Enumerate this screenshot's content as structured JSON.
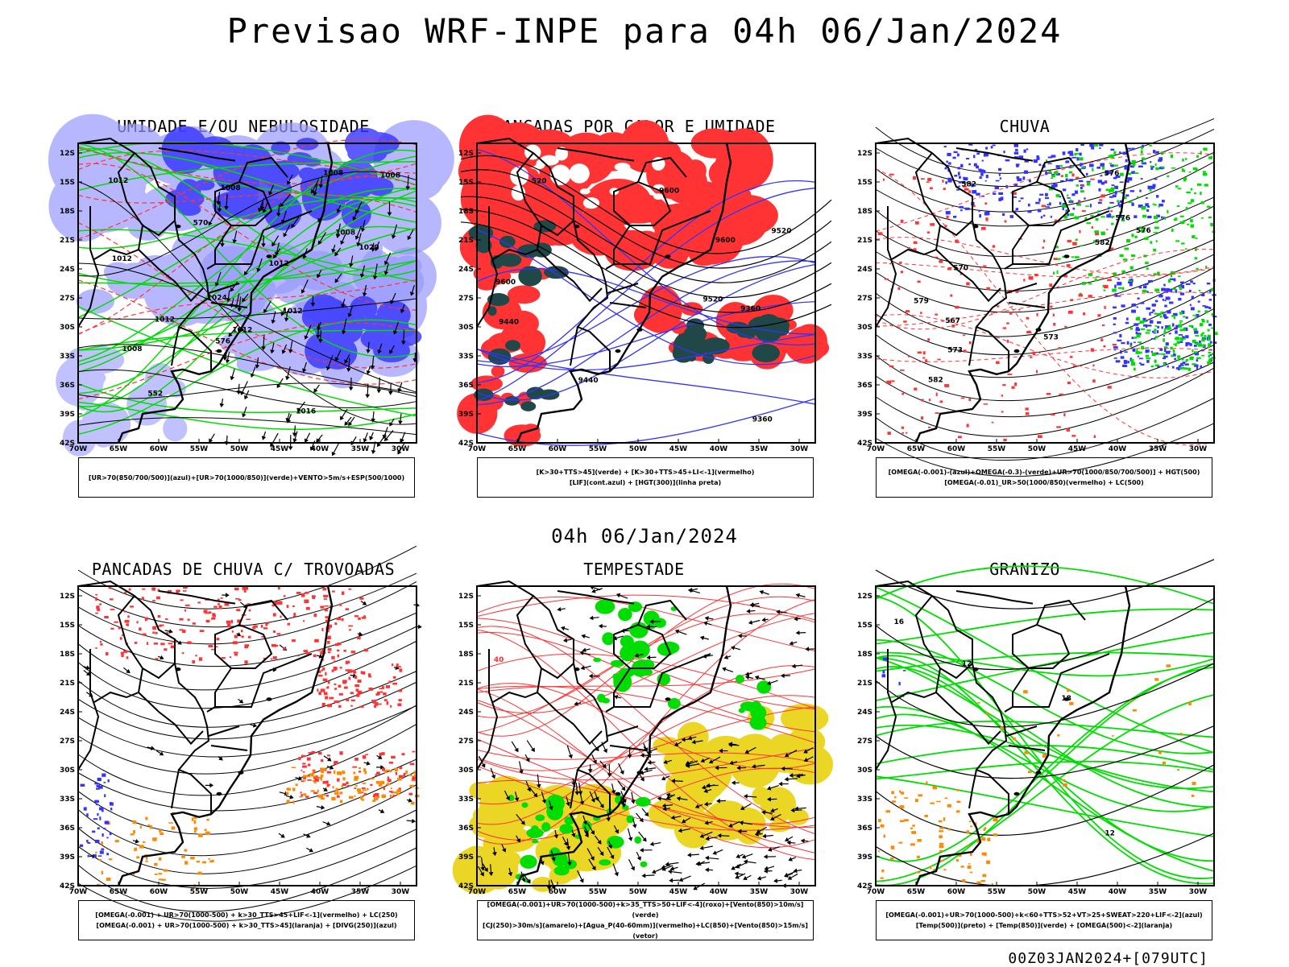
{
  "header": {
    "title": "Previsao WRF-INPE  para 04h 06/Jan/2024"
  },
  "middle_title": "04h 06/Jan/2024",
  "footer_run": "00Z03JAN2024+[079UTC]",
  "axes": {
    "lat_labels": [
      "12S",
      "15S",
      "18S",
      "21S",
      "24S",
      "27S",
      "30S",
      "33S",
      "36S",
      "39S",
      "42S"
    ],
    "lon_labels": [
      "70W",
      "65W",
      "60W",
      "55W",
      "50W",
      "45W",
      "40W",
      "35W",
      "30W"
    ]
  },
  "panels": [
    {
      "title": "UMIDADE E/OU NEBULOSIDADE",
      "legend": [
        "[UR>70(850/700/500)](azul)+[UR>70(1000/850)](verde)+VENTO>5m/s+ESP(500/1000)"
      ],
      "contour_labels": [
        "1012",
        "1008",
        "1012",
        "1012",
        "1012",
        "1008",
        "1008",
        "1008",
        "1012",
        "1016",
        "1020",
        "1024",
        "1012",
        "1008",
        "570",
        "576",
        "552"
      ]
    },
    {
      "title": "PANCADAS POR CALOR E UMIDADE",
      "legend": [
        "[K>30+TTS>45](verde) + [K>30+TTS>45+LI<-1](vermelho)",
        "[LIF](cont.azul) + [HGT(300)](linha preta)"
      ],
      "contour_labels": [
        "9600",
        "9600",
        "9520",
        "9600",
        "9440",
        "9520",
        "9440",
        "9360",
        "9360",
        "520"
      ]
    },
    {
      "title": "CHUVA",
      "legend": [
        "[OMEGA(-0.001)-(azul)+OMEGA(-0.3)-(verde)+UR>70(1000/850/700/500)] + HGT(500)",
        "[OMEGA(-0.01)_UR>50(1000/850)(vermelho) + LC(500)"
      ],
      "contour_labels": [
        "582",
        "576",
        "582",
        "576",
        "573",
        "570",
        "567",
        "573",
        "576",
        "582",
        "579"
      ]
    },
    {
      "title": "PANCADAS DE CHUVA C/ TROVOADAS",
      "legend": [
        "[OMEGA(-0.001) + UR>70(1000-500) + k>30_TTS>45+LIF<-1](vermelho) + LC(250)",
        "[OMEGA(-0.001) + UR>70(1000-500) + k>30_TTS>45](laranja) + [DIVG(250)](azul)"
      ],
      "contour_labels": []
    },
    {
      "title": "TEMPESTADE",
      "legend": [
        "[OMEGA(-0.001)+UR>70(1000-500)+k>35_TTS>50+LIF<-4](roxo)+[Vento(850)>10m/s](verde)",
        "[CJ(250)>30m/s](amarelo)+[Agua_P(40-60mm)](vermelho)+LC(850)+[Vento(850)>15m/s](vetor)"
      ],
      "contour_labels": [
        "40"
      ]
    },
    {
      "title": "GRANIZO",
      "legend": [
        "[OMEGA(-0.001)+UR>70(1000-500)+k<60+TTS>52+VT>25+SWEAT>220+LIF<-2](azul)",
        "[Temp(500)](preto) + [Temp(850)](verde) + [OMEGA(500)<-2](laranja)"
      ],
      "contour_labels": [
        "12",
        "16",
        "12",
        "18"
      ]
    }
  ],
  "colors": {
    "blue": "#3333ff",
    "lightblue": "#9999ff",
    "green": "#00dd00",
    "red": "#ff3333",
    "darkteal": "#204848",
    "orange": "#ff8800",
    "yellow": "#e8d000",
    "black": "#000000"
  }
}
